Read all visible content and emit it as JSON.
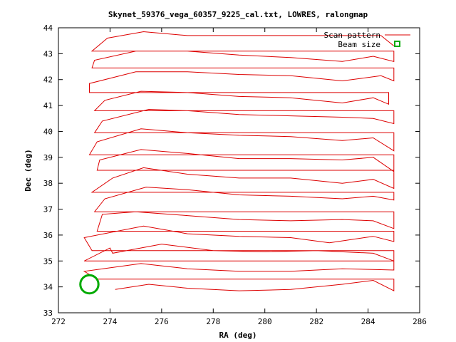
{
  "chart_data": {
    "type": "line",
    "title": "Skynet_59376_vega_60357_9225_cal.txt, LOWRES, ralongmap",
    "xlabel": "RA (deg)",
    "ylabel": "Dec (deg)",
    "xlim": [
      272,
      286
    ],
    "ylim": [
      33,
      44
    ],
    "xticks": [
      272,
      274,
      276,
      278,
      280,
      282,
      284,
      286
    ],
    "yticks": [
      33,
      34,
      35,
      36,
      37,
      38,
      39,
      40,
      41,
      42,
      43,
      44
    ],
    "grid": false,
    "legend_position": "top-right",
    "legend": [
      {
        "label": "Scan pattern",
        "color": "#dd0000"
      },
      {
        "label": "Beam size",
        "color": "#00aa00"
      }
    ],
    "series": [
      {
        "name": "Scan pattern",
        "color": "#dd0000",
        "points": [
          [
            274.2,
            33.9
          ],
          [
            275.5,
            34.1
          ],
          [
            277.0,
            33.95
          ],
          [
            279.0,
            33.85
          ],
          [
            281.0,
            33.9
          ],
          [
            283.0,
            34.1
          ],
          [
            284.2,
            34.25
          ],
          [
            285.0,
            33.85
          ],
          [
            285.0,
            34.3
          ],
          [
            273.5,
            34.3
          ],
          [
            273.0,
            34.6
          ],
          [
            275.2,
            34.9
          ],
          [
            277.0,
            34.7
          ],
          [
            279.0,
            34.6
          ],
          [
            281.0,
            34.6
          ],
          [
            283.0,
            34.7
          ],
          [
            285.0,
            34.65
          ],
          [
            285.0,
            35.0
          ],
          [
            273.0,
            35.0
          ],
          [
            274.0,
            35.5
          ],
          [
            274.1,
            35.3
          ],
          [
            276.0,
            35.65
          ],
          [
            278.0,
            35.4
          ],
          [
            280.0,
            35.35
          ],
          [
            282.0,
            35.4
          ],
          [
            284.2,
            35.3
          ],
          [
            285.0,
            35.0
          ],
          [
            285.0,
            35.4
          ],
          [
            273.3,
            35.4
          ],
          [
            273.0,
            35.9
          ],
          [
            275.3,
            36.35
          ],
          [
            277.0,
            36.05
          ],
          [
            279.0,
            35.95
          ],
          [
            281.0,
            35.9
          ],
          [
            282.5,
            35.7
          ],
          [
            284.2,
            35.95
          ],
          [
            285.0,
            35.75
          ],
          [
            285.0,
            36.15
          ],
          [
            273.5,
            36.15
          ],
          [
            273.7,
            36.8
          ],
          [
            275.0,
            36.9
          ],
          [
            277.0,
            36.75
          ],
          [
            279.0,
            36.6
          ],
          [
            281.0,
            36.55
          ],
          [
            283.0,
            36.6
          ],
          [
            284.2,
            36.55
          ],
          [
            285.0,
            36.25
          ],
          [
            285.0,
            36.9
          ],
          [
            273.4,
            36.9
          ],
          [
            273.8,
            37.4
          ],
          [
            275.4,
            37.85
          ],
          [
            277.0,
            37.75
          ],
          [
            279.0,
            37.55
          ],
          [
            281.0,
            37.5
          ],
          [
            283.0,
            37.4
          ],
          [
            284.2,
            37.5
          ],
          [
            285.0,
            37.35
          ],
          [
            285.0,
            37.65
          ],
          [
            273.3,
            37.65
          ],
          [
            274.1,
            38.2
          ],
          [
            275.3,
            38.6
          ],
          [
            277.0,
            38.35
          ],
          [
            279.0,
            38.2
          ],
          [
            281.0,
            38.2
          ],
          [
            283.0,
            38.0
          ],
          [
            284.2,
            38.15
          ],
          [
            285.0,
            37.8
          ],
          [
            285.0,
            38.5
          ],
          [
            273.5,
            38.5
          ],
          [
            273.6,
            38.9
          ],
          [
            275.2,
            39.3
          ],
          [
            277.0,
            39.15
          ],
          [
            279.0,
            38.95
          ],
          [
            281.0,
            38.95
          ],
          [
            283.0,
            38.9
          ],
          [
            284.2,
            39.0
          ],
          [
            285.0,
            38.45
          ],
          [
            285.0,
            39.1
          ],
          [
            273.2,
            39.1
          ],
          [
            273.5,
            39.6
          ],
          [
            275.2,
            40.1
          ],
          [
            277.0,
            39.95
          ],
          [
            279.0,
            39.85
          ],
          [
            281.0,
            39.8
          ],
          [
            283.0,
            39.65
          ],
          [
            284.2,
            39.75
          ],
          [
            285.0,
            39.25
          ],
          [
            285.0,
            39.95
          ],
          [
            273.4,
            39.95
          ],
          [
            273.7,
            40.4
          ],
          [
            275.5,
            40.85
          ],
          [
            277.0,
            40.8
          ],
          [
            279.0,
            40.65
          ],
          [
            281.0,
            40.6
          ],
          [
            283.0,
            40.55
          ],
          [
            284.2,
            40.5
          ],
          [
            285.0,
            40.3
          ],
          [
            285.0,
            40.8
          ],
          [
            273.4,
            40.8
          ],
          [
            273.8,
            41.2
          ],
          [
            275.2,
            41.55
          ],
          [
            277.0,
            41.5
          ],
          [
            279.0,
            41.35
          ],
          [
            281.0,
            41.3
          ],
          [
            283.0,
            41.1
          ],
          [
            284.2,
            41.3
          ],
          [
            284.8,
            41.05
          ],
          [
            284.8,
            41.5
          ],
          [
            273.2,
            41.5
          ],
          [
            273.2,
            41.85
          ],
          [
            275.0,
            42.3
          ],
          [
            277.0,
            42.3
          ],
          [
            279.0,
            42.2
          ],
          [
            281.0,
            42.15
          ],
          [
            283.0,
            41.95
          ],
          [
            284.5,
            42.15
          ],
          [
            285.0,
            41.95
          ],
          [
            285.0,
            42.45
          ],
          [
            273.3,
            42.45
          ],
          [
            273.4,
            42.75
          ],
          [
            275.0,
            43.1
          ],
          [
            277.0,
            43.1
          ],
          [
            279.0,
            42.95
          ],
          [
            281.0,
            42.85
          ],
          [
            283.0,
            42.7
          ],
          [
            284.2,
            42.9
          ],
          [
            285.0,
            42.7
          ],
          [
            285.0,
            43.1
          ],
          [
            273.3,
            43.1
          ],
          [
            273.9,
            43.6
          ],
          [
            275.3,
            43.85
          ],
          [
            277.0,
            43.7
          ],
          [
            279.0,
            43.7
          ],
          [
            281.0,
            43.7
          ],
          [
            283.0,
            43.7
          ],
          [
            284.5,
            43.7
          ],
          [
            285.0,
            43.3
          ]
        ]
      },
      {
        "name": "Beam size",
        "color": "#00aa00",
        "circle": {
          "x": 273.2,
          "y": 34.1,
          "radius": 0.35
        }
      }
    ]
  }
}
